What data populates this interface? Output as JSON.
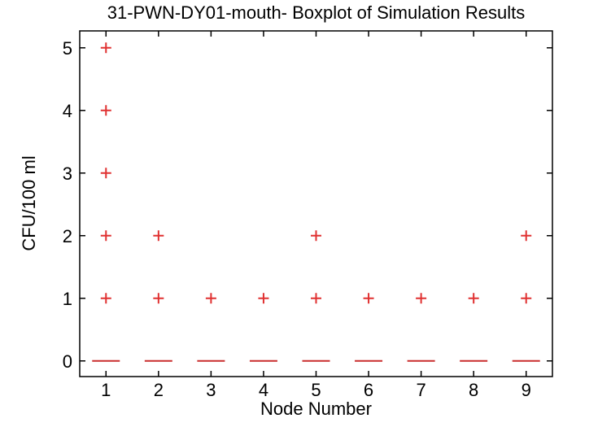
{
  "chart_data": {
    "type": "boxplot",
    "title": "31-PWN-DY01-mouth- Boxplot of Simulation Results",
    "xlabel": "Node Number",
    "ylabel": "CFU/100 ml",
    "x_tick_values": [
      1,
      2,
      3,
      4,
      5,
      6,
      7,
      8,
      9
    ],
    "x_tick_labels": [
      "1",
      "2",
      "3",
      "4",
      "5",
      "6",
      "7",
      "8",
      "9"
    ],
    "y_tick_values": [
      0,
      1,
      2,
      3,
      4,
      5
    ],
    "y_tick_labels": [
      "0",
      "1",
      "2",
      "3",
      "4",
      "5"
    ],
    "xlim": [
      0.5,
      9.5
    ],
    "ylim": [
      -0.25,
      5.27
    ],
    "grid": false,
    "legend": null,
    "groups": [
      {
        "label": "1",
        "median": 0,
        "q1": 0,
        "q3": 0,
        "whisker_low": 0,
        "whisker_high": 0,
        "outliers": [
          1,
          2,
          3,
          4,
          5
        ]
      },
      {
        "label": "2",
        "median": 0,
        "q1": 0,
        "q3": 0,
        "whisker_low": 0,
        "whisker_high": 0,
        "outliers": [
          1,
          2
        ]
      },
      {
        "label": "3",
        "median": 0,
        "q1": 0,
        "q3": 0,
        "whisker_low": 0,
        "whisker_high": 0,
        "outliers": [
          1
        ]
      },
      {
        "label": "4",
        "median": 0,
        "q1": 0,
        "q3": 0,
        "whisker_low": 0,
        "whisker_high": 0,
        "outliers": [
          1
        ]
      },
      {
        "label": "5",
        "median": 0,
        "q1": 0,
        "q3": 0,
        "whisker_low": 0,
        "whisker_high": 0,
        "outliers": [
          1,
          2
        ]
      },
      {
        "label": "6",
        "median": 0,
        "q1": 0,
        "q3": 0,
        "whisker_low": 0,
        "whisker_high": 0,
        "outliers": [
          1
        ]
      },
      {
        "label": "7",
        "median": 0,
        "q1": 0,
        "q3": 0,
        "whisker_low": 0,
        "whisker_high": 0,
        "outliers": [
          1
        ]
      },
      {
        "label": "8",
        "median": 0,
        "q1": 0,
        "q3": 0,
        "whisker_low": 0,
        "whisker_high": 0,
        "outliers": [
          1
        ]
      },
      {
        "label": "9",
        "median": 0,
        "q1": 0,
        "q3": 0,
        "whisker_low": 0,
        "whisker_high": 0,
        "outliers": [
          1,
          2
        ]
      }
    ],
    "style": {
      "outlier_marker": "+",
      "outlier_color": "#e03131",
      "median_color": "#c92c2c",
      "axis_color": "#000000",
      "background": "#ffffff"
    }
  }
}
